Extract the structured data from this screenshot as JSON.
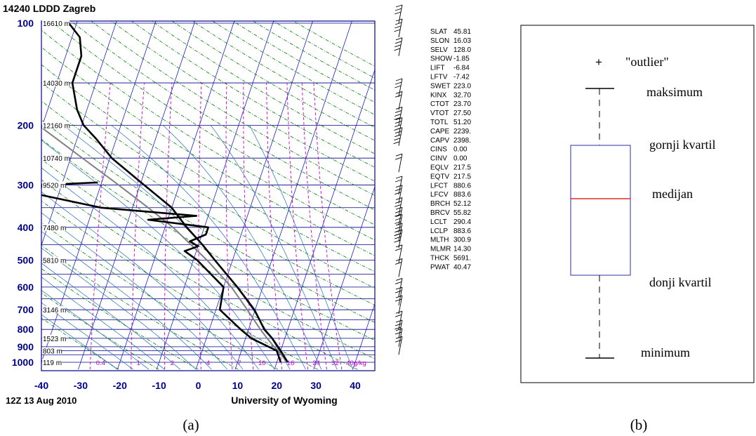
{
  "colors": {
    "isobar": "#00008b",
    "isotherm": "#0000cd",
    "dry_adiabat": "#008000",
    "mixing_ratio": "#cc00cc",
    "moist_adiabat": "#1e6bb8",
    "parcel": "#808080",
    "profile": "#000000",
    "box": "#5050b0",
    "median": "#e00000"
  },
  "caption_a": "(a)",
  "caption_b": "(b)",
  "chart_data": [
    {
      "type": "line",
      "title": "14240 LDDD Zagreb",
      "footer_left": "12Z 13 Aug 2010",
      "footer_center": "University of Wyoming",
      "xlim": [
        -40,
        45
      ],
      "x_ticks": [
        "-40",
        "-30",
        "-20",
        "-10",
        "0",
        "10",
        "20",
        "30",
        "40"
      ],
      "y_ticks": [
        {
          "p": 100,
          "label": "100"
        },
        {
          "p": 200,
          "label": "200"
        },
        {
          "p": 300,
          "label": "300"
        },
        {
          "p": 400,
          "label": "400"
        },
        {
          "p": 500,
          "label": "500"
        },
        {
          "p": 600,
          "label": "600"
        },
        {
          "p": 700,
          "label": "700"
        },
        {
          "p": 800,
          "label": "800"
        },
        {
          "p": 900,
          "label": "900"
        },
        {
          "p": 1000,
          "label": "1000"
        }
      ],
      "height_labels": [
        {
          "p": 100,
          "label": "16610 m"
        },
        {
          "p": 150,
          "label": "14030 m"
        },
        {
          "p": 200,
          "label": "12160 m"
        },
        {
          "p": 250,
          "label": "10740 m"
        },
        {
          "p": 300,
          "label": "9520 m"
        },
        {
          "p": 400,
          "label": "7480 m"
        },
        {
          "p": 500,
          "label": "5810 m"
        },
        {
          "p": 700,
          "label": "3146 m"
        },
        {
          "p": 850,
          "label": "1523 m"
        },
        {
          "p": 925,
          "label": "803 m"
        },
        {
          "p": 1000,
          "label": "119 m"
        }
      ],
      "mixing_ratio_labels": [
        "0.4",
        "1",
        "2",
        "4",
        "7",
        "10",
        "16",
        "24",
        "32",
        "40g/kg"
      ],
      "temperature_profile": [
        {
          "p": 1000,
          "t": 22.8
        },
        {
          "p": 925,
          "t": 20.0
        },
        {
          "p": 850,
          "t": 16.8
        },
        {
          "p": 800,
          "t": 14.0
        },
        {
          "p": 750,
          "t": 12.0
        },
        {
          "p": 700,
          "t": 9.8
        },
        {
          "p": 600,
          "t": 3.5
        },
        {
          "p": 500,
          "t": -4.5
        },
        {
          "p": 450,
          "t": -9.0
        },
        {
          "p": 400,
          "t": -14.5
        },
        {
          "p": 350,
          "t": -20.0
        },
        {
          "p": 300,
          "t": -29.0
        },
        {
          "p": 250,
          "t": -39.5
        },
        {
          "p": 220,
          "t": -45.0
        },
        {
          "p": 200,
          "t": -49.5
        },
        {
          "p": 180,
          "t": -52.5
        },
        {
          "p": 150,
          "t": -56.0
        },
        {
          "p": 125,
          "t": -56.0
        },
        {
          "p": 110,
          "t": -58.0
        },
        {
          "p": 100,
          "t": -62.0
        }
      ],
      "dewpoint_profile": [
        {
          "p": 1000,
          "t": 21.0
        },
        {
          "p": 925,
          "t": 19.0
        },
        {
          "p": 850,
          "t": 11.5
        },
        {
          "p": 800,
          "t": 8.0
        },
        {
          "p": 700,
          "t": 1.0
        },
        {
          "p": 600,
          "t": 0.0
        },
        {
          "p": 500,
          "t": -9.0
        },
        {
          "p": 470,
          "t": -13.0
        },
        {
          "p": 455,
          "t": -10.0
        },
        {
          "p": 440,
          "t": -12.5
        },
        {
          "p": 420,
          "t": -9.0
        },
        {
          "p": 400,
          "t": -9.0
        },
        {
          "p": 380,
          "t": -25.0
        },
        {
          "p": 370,
          "t": -13.0
        },
        {
          "p": 350,
          "t": -38.0
        },
        {
          "p": 320,
          "t": -55.0
        },
        {
          "p": 300,
          "t": -55.0
        },
        {
          "p": 295,
          "t": -41.0
        }
      ],
      "parcel_profile": [
        {
          "p": 1000,
          "t": 22.8
        },
        {
          "p": 900,
          "t": 18.0
        },
        {
          "p": 850,
          "t": 15.5
        },
        {
          "p": 800,
          "t": 13.0
        },
        {
          "p": 700,
          "t": 8.0
        },
        {
          "p": 600,
          "t": 2.0
        },
        {
          "p": 500,
          "t": -6.5
        },
        {
          "p": 400,
          "t": -18.0
        },
        {
          "p": 350,
          "t": -26.0
        },
        {
          "p": 300,
          "t": -35.5
        },
        {
          "p": 250,
          "t": -47.0
        },
        {
          "p": 200,
          "t": -61.0
        },
        {
          "p": 150,
          "t": -80.0
        },
        {
          "p": 100,
          "t": -107.0
        }
      ],
      "wind_barbs": [
        {
          "p": 100,
          "n": 3
        },
        {
          "p": 110,
          "n": 4
        },
        {
          "p": 125,
          "n": 4
        },
        {
          "p": 165,
          "n": 3
        },
        {
          "p": 180,
          "n": 2
        },
        {
          "p": 200,
          "n": 4
        },
        {
          "p": 215,
          "n": 4
        },
        {
          "p": 230,
          "n": 5
        },
        {
          "p": 275,
          "n": 2
        },
        {
          "p": 320,
          "n": 2
        },
        {
          "p": 340,
          "n": 3
        },
        {
          "p": 370,
          "n": 3
        },
        {
          "p": 395,
          "n": 3
        },
        {
          "p": 415,
          "n": 3
        },
        {
          "p": 440,
          "n": 4
        },
        {
          "p": 460,
          "n": 4
        },
        {
          "p": 510,
          "n": 2
        },
        {
          "p": 560,
          "n": 2
        },
        {
          "p": 640,
          "n": 2
        },
        {
          "p": 680,
          "n": 2
        },
        {
          "p": 720,
          "n": 2
        },
        {
          "p": 800,
          "n": 2
        },
        {
          "p": 850,
          "n": 3
        },
        {
          "p": 900,
          "n": 2
        },
        {
          "p": 950,
          "n": 2
        }
      ],
      "indices": [
        {
          "key": "SLAT",
          "value": "45.81"
        },
        {
          "key": "SLON",
          "value": "16.03"
        },
        {
          "key": "SELV",
          "value": "128.0"
        },
        {
          "key": "SHOW",
          "value": "-1.85"
        },
        {
          "key": "LIFT",
          "value": "-6.84"
        },
        {
          "key": "LFTV",
          "value": "-7.42"
        },
        {
          "key": "SWET",
          "value": "223.0"
        },
        {
          "key": "KINX",
          "value": "32.70"
        },
        {
          "key": "CTOT",
          "value": "23.70"
        },
        {
          "key": "VTOT",
          "value": "27.50"
        },
        {
          "key": "TOTL",
          "value": "51.20"
        },
        {
          "key": "CAPE",
          "value": "2239."
        },
        {
          "key": "CAPV",
          "value": "2398."
        },
        {
          "key": "CINS",
          "value": "0.00"
        },
        {
          "key": "CINV",
          "value": "0.00"
        },
        {
          "key": "EQLV",
          "value": "217.5"
        },
        {
          "key": "EQTV",
          "value": "217.5"
        },
        {
          "key": "LFCT",
          "value": "880.6"
        },
        {
          "key": "LFCV",
          "value": "883.6"
        },
        {
          "key": "BRCH",
          "value": "52.12"
        },
        {
          "key": "BRCV",
          "value": "55.82"
        },
        {
          "key": "LCLT",
          "value": "290.4"
        },
        {
          "key": "LCLP",
          "value": "883.6"
        },
        {
          "key": "MLTH",
          "value": "300.9"
        },
        {
          "key": "MLMR",
          "value": "14.30"
        },
        {
          "key": "THCK",
          "value": "5691."
        },
        {
          "key": "PWAT",
          "value": "40.47"
        }
      ]
    },
    {
      "type": "box",
      "labels": {
        "outlier": "\"outlier\"",
        "max": "maksimum",
        "q3": "gornji kvartil",
        "median": "medijan",
        "q1": "donji kvartil",
        "min": "minimum"
      },
      "outlier_marker": "+"
    }
  ]
}
